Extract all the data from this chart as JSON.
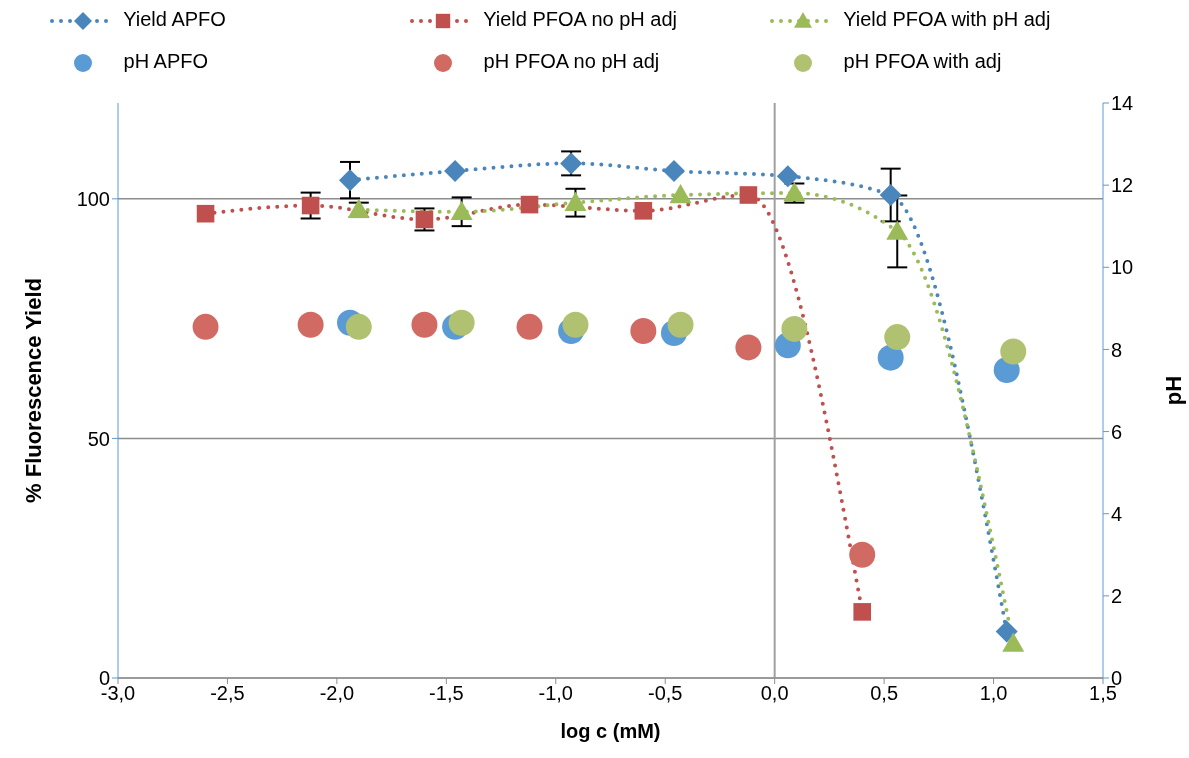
{
  "chart_data": {
    "type": "line",
    "xlabel": "log c (mM)",
    "ylabel": "% Fluorescence Yield",
    "y2label": "pH",
    "xlim": [
      -3,
      1.5
    ],
    "xticks": [
      {
        "value": -3,
        "label": "-3,0"
      },
      {
        "value": -2.5,
        "label": "-2,5"
      },
      {
        "value": -2,
        "label": "-2,0"
      },
      {
        "value": -1.5,
        "label": "-1,5"
      },
      {
        "value": -1,
        "label": "-1,0"
      },
      {
        "value": -0.5,
        "label": "-0,5"
      },
      {
        "value": 0,
        "label": "0,0"
      },
      {
        "value": 0.5,
        "label": "0,5"
      },
      {
        "value": 1,
        "label": "1,0"
      },
      {
        "value": 1.5,
        "label": "1,5"
      }
    ],
    "ylim": [
      0,
      120
    ],
    "yticks": [
      0,
      50,
      100
    ],
    "y2lim": [
      0,
      14
    ],
    "y2ticks": [
      0,
      2,
      4,
      6,
      8,
      10,
      12,
      14
    ],
    "grid": "y",
    "legend": "top",
    "line_style": "dotted",
    "ref_lines": [
      {
        "axis": "x",
        "value": 0,
        "color": "#a0a0a0"
      }
    ],
    "series": [
      {
        "name": "Yield APFO",
        "marker": "diamond",
        "color": "#4a86bc",
        "x": [
          -1.94,
          -1.46,
          -0.93,
          -0.46,
          0.06,
          0.53,
          1.06
        ],
        "values": [
          103.9,
          105.8,
          107.4,
          105.8,
          104.7,
          100.8,
          9.7
        ],
        "errors": [
          3.8,
          null,
          2.5,
          null,
          null,
          5.5,
          null
        ]
      },
      {
        "name": "Yield PFOA no pH adj",
        "marker": "square",
        "color": "#c0504d",
        "x": [
          -2.6,
          -2.12,
          -1.6,
          -1.12,
          -0.6,
          -0.12,
          0.4
        ],
        "values": [
          96.9,
          98.6,
          95.7,
          98.8,
          97.5,
          100.8,
          13.8
        ],
        "errors": [
          null,
          2.7,
          2.3,
          null,
          null,
          null,
          null
        ]
      },
      {
        "name": "Yield PFOA with pH adj",
        "marker": "triangle",
        "color": "#9bbb59",
        "x": [
          -1.9,
          -1.43,
          -0.91,
          -0.43,
          0.09,
          0.56,
          1.09
        ],
        "values": [
          97.7,
          97.3,
          99.2,
          100.8,
          101.2,
          93.2,
          7.2
        ],
        "errors": [
          1.5,
          3,
          2.9,
          null,
          2,
          7.5,
          null
        ]
      },
      {
        "name": "pH APFO",
        "type": "scatter",
        "marker": "circle",
        "axis": "y2",
        "color": "#5b9bd5",
        "x": [
          -1.94,
          -1.46,
          -0.93,
          -0.46,
          0.06,
          0.53,
          1.06
        ],
        "values": [
          8.65,
          8.55,
          8.45,
          8.4,
          8.1,
          7.8,
          7.5
        ]
      },
      {
        "name": "pH PFOA no pH adj",
        "type": "scatter",
        "marker": "circle",
        "axis": "y2",
        "color": "#d06a63",
        "x": [
          -2.6,
          -2.12,
          -1.6,
          -1.12,
          -0.6,
          -0.12,
          0.4
        ],
        "values": [
          8.55,
          8.6,
          8.6,
          8.55,
          8.45,
          8.05,
          3
        ]
      },
      {
        "name": "pH PFOA with adj",
        "type": "scatter",
        "marker": "circle",
        "axis": "y2",
        "color": "#b0c272",
        "x": [
          -1.9,
          -1.43,
          -0.91,
          -0.43,
          0.09,
          0.56,
          1.09
        ],
        "values": [
          8.55,
          8.65,
          8.6,
          8.6,
          8.5,
          8.3,
          7.95
        ]
      }
    ]
  }
}
